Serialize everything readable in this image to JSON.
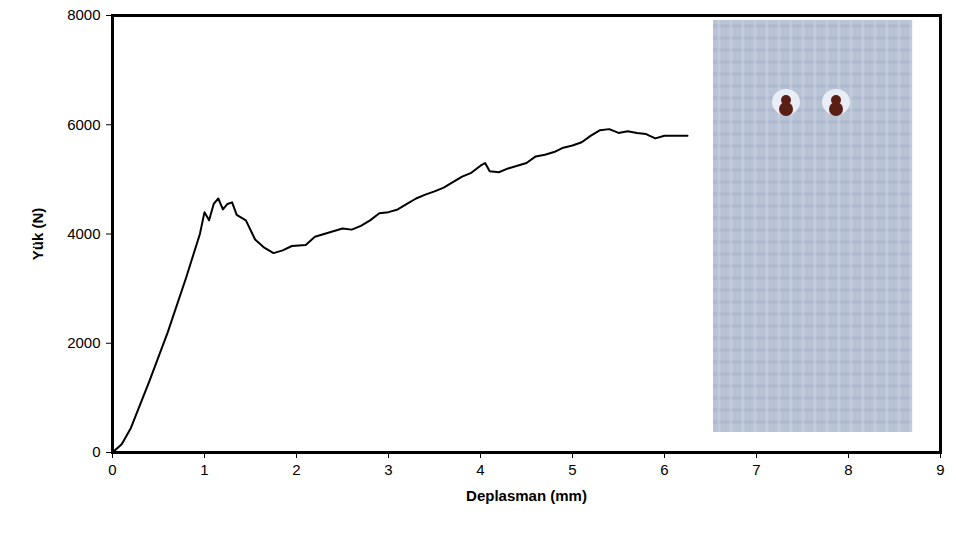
{
  "chart_data": {
    "type": "line",
    "x_label": "Deplasman (mm)",
    "y_label": "Yük (N)",
    "color": "#000000",
    "grid": false,
    "xlim": [
      0,
      9
    ],
    "xticks": [
      0,
      1,
      2,
      3,
      4,
      5,
      6,
      7,
      8,
      9
    ],
    "ylim": [
      0,
      8000
    ],
    "yticks": [
      0,
      2000,
      4000,
      6000,
      8000
    ],
    "x": [
      0,
      0.1,
      0.2,
      0.4,
      0.6,
      0.8,
      0.95,
      1.0,
      1.05,
      1.1,
      1.15,
      1.2,
      1.25,
      1.3,
      1.35,
      1.45,
      1.55,
      1.65,
      1.75,
      1.85,
      1.95,
      2.1,
      2.2,
      2.3,
      2.4,
      2.5,
      2.6,
      2.7,
      2.8,
      2.9,
      3.0,
      3.1,
      3.2,
      3.3,
      3.4,
      3.5,
      3.6,
      3.7,
      3.8,
      3.9,
      4.0,
      4.05,
      4.1,
      4.2,
      4.3,
      4.4,
      4.5,
      4.6,
      4.7,
      4.8,
      4.9,
      5.0,
      5.1,
      5.2,
      5.3,
      5.4,
      5.5,
      5.6,
      5.7,
      5.8,
      5.9,
      6.0,
      6.1,
      6.25
    ],
    "values": [
      0,
      150,
      450,
      1300,
      2200,
      3200,
      4000,
      4400,
      4250,
      4550,
      4650,
      4450,
      4550,
      4580,
      4350,
      4250,
      3900,
      3750,
      3650,
      3700,
      3780,
      3800,
      3950,
      4000,
      4050,
      4100,
      4080,
      4150,
      4250,
      4380,
      4400,
      4450,
      4550,
      4650,
      4720,
      4780,
      4850,
      4950,
      5050,
      5120,
      5250,
      5300,
      5150,
      5130,
      5200,
      5250,
      5300,
      5420,
      5450,
      5500,
      5580,
      5620,
      5680,
      5800,
      5900,
      5920,
      5850,
      5880,
      5850,
      5830,
      5750,
      5800,
      5800,
      5800
    ]
  }
}
